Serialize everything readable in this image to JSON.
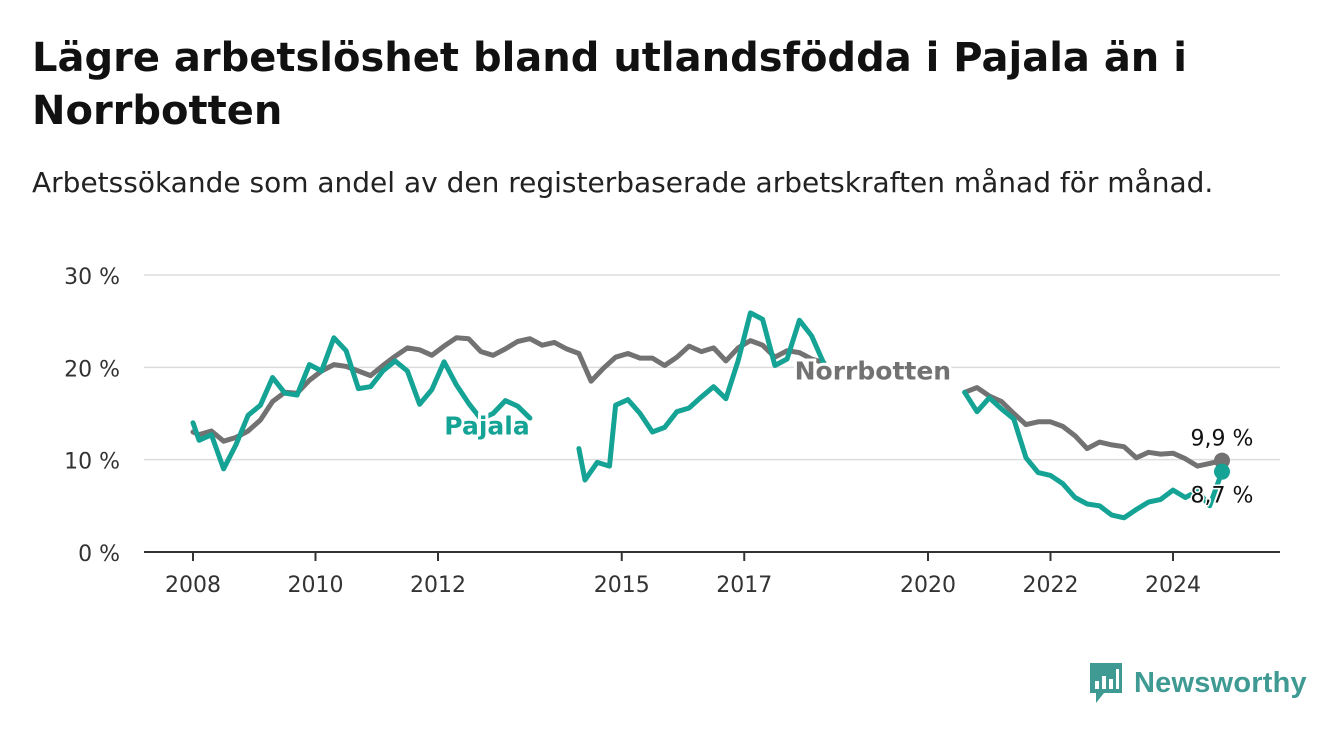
{
  "header": {
    "title": "Lägre arbetslöshet bland utlandsfödda i Pajala än i Norrbotten",
    "subtitle": "Arbetssökande som andel av den registerbaserade arbetskraften månad för månad."
  },
  "brand": {
    "name": "Newsworthy",
    "icon": "newsworthy-logo-icon",
    "color": "#3f9a94"
  },
  "colors": {
    "norrbotten": "#727272",
    "pajala": "#14a394",
    "grid": "#dddddd",
    "axis": "#333333"
  },
  "chart_data": {
    "type": "line",
    "title": "Lägre arbetslöshet bland utlandsfödda i Pajala än i Norrbotten",
    "subtitle": "Arbetssökande som andel av den registerbaserade arbetskraften månad för månad.",
    "xlabel": "",
    "ylabel": "",
    "x_range": [
      2007.2,
      2025.5
    ],
    "ylim": [
      0,
      30
    ],
    "y_ticks": [
      0,
      10,
      20,
      30
    ],
    "y_tick_labels": [
      "0 %",
      "10 %",
      "20 %",
      "30 %"
    ],
    "x_tick_values": [
      2008,
      2010,
      2012,
      2015,
      2017,
      2020,
      2022,
      2024
    ],
    "x_tick_labels": [
      "2008",
      "2010",
      "2012",
      "2015",
      "2017",
      "2020",
      "2022",
      "2024"
    ],
    "grid": true,
    "legend": "direct labels on lines",
    "series": [
      {
        "name": "Norrbotten",
        "color": "#727272",
        "end_label": "9,9 %",
        "points": [
          [
            2008.0,
            13.0
          ],
          [
            2008.1,
            12.7
          ],
          [
            2008.3,
            13.1
          ],
          [
            2008.5,
            12.0
          ],
          [
            2008.7,
            12.4
          ],
          [
            2008.9,
            13.1
          ],
          [
            2009.1,
            14.3
          ],
          [
            2009.3,
            16.3
          ],
          [
            2009.5,
            17.3
          ],
          [
            2009.7,
            17.2
          ],
          [
            2009.9,
            18.6
          ],
          [
            2010.1,
            19.6
          ],
          [
            2010.3,
            20.3
          ],
          [
            2010.5,
            20.1
          ],
          [
            2010.7,
            19.6
          ],
          [
            2010.9,
            19.1
          ],
          [
            2011.1,
            20.2
          ],
          [
            2011.3,
            21.2
          ],
          [
            2011.5,
            22.1
          ],
          [
            2011.7,
            21.9
          ],
          [
            2011.9,
            21.3
          ],
          [
            2012.1,
            22.3
          ],
          [
            2012.3,
            23.2
          ],
          [
            2012.5,
            23.1
          ],
          [
            2012.7,
            21.7
          ],
          [
            2012.9,
            21.3
          ],
          [
            2013.1,
            22.0
          ],
          [
            2013.3,
            22.8
          ],
          [
            2013.5,
            23.1
          ],
          [
            2013.7,
            22.4
          ],
          [
            2013.9,
            22.7
          ],
          [
            2014.1,
            22.0
          ],
          [
            2014.3,
            21.5
          ],
          [
            2014.5,
            18.5
          ],
          [
            2014.7,
            19.9
          ],
          [
            2014.9,
            21.1
          ],
          [
            2015.1,
            21.5
          ],
          [
            2015.3,
            21.0
          ],
          [
            2015.5,
            21.0
          ],
          [
            2015.7,
            20.2
          ],
          [
            2015.9,
            21.1
          ],
          [
            2016.1,
            22.3
          ],
          [
            2016.3,
            21.7
          ],
          [
            2016.5,
            22.1
          ],
          [
            2016.7,
            20.7
          ],
          [
            2016.9,
            22.1
          ],
          [
            2017.1,
            22.9
          ],
          [
            2017.3,
            22.4
          ],
          [
            2017.5,
            21.1
          ],
          [
            2017.7,
            21.8
          ],
          [
            2017.9,
            21.6
          ],
          [
            2018.1,
            20.9
          ],
          [
            2018.3,
            20.5
          ]
        ]
      },
      {
        "name": "Norrbotten",
        "color": "#727272",
        "points": [
          [
            2020.6,
            17.3
          ],
          [
            2020.8,
            17.8
          ],
          [
            2021.0,
            16.9
          ],
          [
            2021.2,
            16.3
          ],
          [
            2021.4,
            15.0
          ],
          [
            2021.6,
            13.8
          ],
          [
            2021.8,
            14.1
          ],
          [
            2022.0,
            14.1
          ],
          [
            2022.2,
            13.6
          ],
          [
            2022.4,
            12.6
          ],
          [
            2022.6,
            11.2
          ],
          [
            2022.8,
            11.9
          ],
          [
            2023.0,
            11.6
          ],
          [
            2023.2,
            11.4
          ],
          [
            2023.4,
            10.2
          ],
          [
            2023.6,
            10.8
          ],
          [
            2023.8,
            10.6
          ],
          [
            2024.0,
            10.7
          ],
          [
            2024.2,
            10.1
          ],
          [
            2024.4,
            9.3
          ],
          [
            2024.6,
            9.6
          ],
          [
            2024.8,
            9.9
          ]
        ]
      },
      {
        "name": "Pajala",
        "color": "#14a394",
        "end_label": "8,7 %",
        "points": [
          [
            2008.0,
            14.0
          ],
          [
            2008.1,
            12.1
          ],
          [
            2008.3,
            12.7
          ],
          [
            2008.5,
            9.0
          ],
          [
            2008.7,
            11.6
          ],
          [
            2008.9,
            14.8
          ],
          [
            2009.1,
            15.9
          ],
          [
            2009.3,
            18.9
          ],
          [
            2009.5,
            17.2
          ],
          [
            2009.7,
            17.0
          ],
          [
            2009.9,
            20.3
          ],
          [
            2010.1,
            19.6
          ],
          [
            2010.3,
            23.2
          ],
          [
            2010.5,
            21.8
          ],
          [
            2010.7,
            17.7
          ],
          [
            2010.9,
            17.9
          ],
          [
            2011.1,
            19.6
          ],
          [
            2011.3,
            20.7
          ],
          [
            2011.5,
            19.6
          ],
          [
            2011.7,
            16.0
          ],
          [
            2011.9,
            17.6
          ],
          [
            2012.1,
            20.6
          ],
          [
            2012.3,
            18.1
          ],
          [
            2012.5,
            16.1
          ],
          [
            2012.7,
            14.4
          ],
          [
            2012.9,
            15.0
          ],
          [
            2013.1,
            16.4
          ],
          [
            2013.3,
            15.8
          ],
          [
            2013.5,
            14.5
          ]
        ]
      },
      {
        "name": "Pajala",
        "color": "#14a394",
        "points": [
          [
            2014.3,
            11.2
          ],
          [
            2014.4,
            7.8
          ],
          [
            2014.6,
            9.7
          ],
          [
            2014.8,
            9.3
          ],
          [
            2014.9,
            15.9
          ],
          [
            2015.1,
            16.5
          ],
          [
            2015.3,
            15.0
          ],
          [
            2015.5,
            13.0
          ],
          [
            2015.7,
            13.5
          ],
          [
            2015.9,
            15.2
          ],
          [
            2016.1,
            15.6
          ],
          [
            2016.3,
            16.8
          ],
          [
            2016.5,
            17.9
          ],
          [
            2016.7,
            16.6
          ],
          [
            2016.9,
            20.7
          ],
          [
            2017.1,
            25.9
          ],
          [
            2017.3,
            25.2
          ],
          [
            2017.5,
            20.2
          ],
          [
            2017.7,
            20.9
          ],
          [
            2017.9,
            25.1
          ],
          [
            2018.1,
            23.4
          ],
          [
            2018.3,
            20.4
          ]
        ]
      },
      {
        "name": "Pajala",
        "color": "#14a394",
        "points": [
          [
            2020.6,
            17.3
          ],
          [
            2020.8,
            15.2
          ],
          [
            2021.0,
            16.7
          ],
          [
            2021.2,
            15.5
          ],
          [
            2021.4,
            14.4
          ],
          [
            2021.6,
            10.2
          ],
          [
            2021.8,
            8.6
          ],
          [
            2022.0,
            8.3
          ],
          [
            2022.2,
            7.4
          ],
          [
            2022.4,
            5.9
          ],
          [
            2022.6,
            5.2
          ],
          [
            2022.8,
            5.0
          ],
          [
            2023.0,
            4.0
          ],
          [
            2023.2,
            3.7
          ],
          [
            2023.4,
            4.6
          ],
          [
            2023.6,
            5.4
          ],
          [
            2023.8,
            5.7
          ],
          [
            2024.0,
            6.7
          ],
          [
            2024.2,
            5.9
          ],
          [
            2024.4,
            6.6
          ],
          [
            2024.6,
            5.0
          ],
          [
            2024.8,
            8.7
          ]
        ]
      }
    ],
    "line_labels": [
      {
        "text": "Norrbotten",
        "series": "Norrbotten",
        "x": 2019.1,
        "y": 18.7
      },
      {
        "text": "Pajala",
        "series": "Pajala",
        "x": 2012.8,
        "y": 12.7
      }
    ],
    "end_points": [
      {
        "series": "Norrbotten",
        "x": 2024.8,
        "y": 9.9,
        "label": "9,9 %"
      },
      {
        "series": "Pajala",
        "x": 2024.8,
        "y": 8.7,
        "label": "8,7 %"
      }
    ]
  }
}
